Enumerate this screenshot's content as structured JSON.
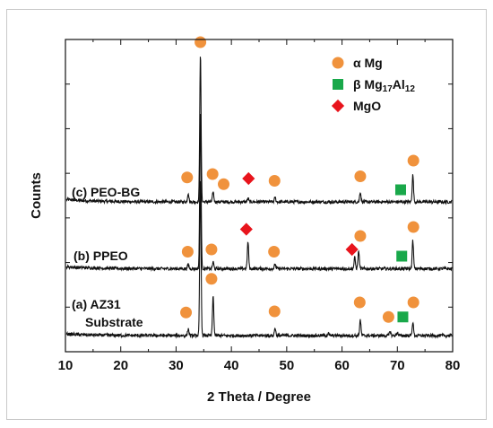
{
  "chart_data": {
    "type": "line",
    "xlabel": "2 Theta / Degree",
    "ylabel": "Counts",
    "xlim": [
      10,
      80
    ],
    "x_ticks": [
      "10",
      "20",
      "30",
      "40",
      "50",
      "60",
      "70",
      "80"
    ],
    "grid": false,
    "legend_position": "top-right",
    "legend": [
      {
        "label": "α Mg",
        "marker": "circle",
        "color": "#f0923c"
      },
      {
        "label_prefix": "β Mg",
        "sub1": "17",
        "mid": "Al",
        "sub2": "12",
        "marker": "square",
        "color": "#19a84a"
      },
      {
        "label": "MgO",
        "marker": "diamond",
        "color": "#e8141c"
      }
    ],
    "series": [
      {
        "name": "(c) PEO-BG",
        "baseline": 0.12,
        "peaks": [
          [
            32.2,
            0.4
          ],
          [
            34.4,
            6.6
          ],
          [
            36.7,
            0.45
          ],
          [
            43.0,
            0.15
          ],
          [
            47.9,
            0.2
          ],
          [
            63.3,
            0.45
          ],
          [
            72.8,
            1.2
          ]
        ],
        "markers": [
          {
            "type": "alpha",
            "x": 32.0,
            "y": 0.85
          },
          {
            "type": "alpha",
            "x": 36.6,
            "y": 1.0
          },
          {
            "type": "alpha",
            "x": 38.6,
            "y": 0.55
          },
          {
            "type": "mgo",
            "x": 43.1,
            "y": 0.8
          },
          {
            "type": "alpha",
            "x": 47.8,
            "y": 0.7
          },
          {
            "type": "alpha",
            "x": 63.3,
            "y": 0.9
          },
          {
            "type": "beta",
            "x": 70.6,
            "y": 0.3
          },
          {
            "type": "alpha",
            "x": 72.9,
            "y": 1.6
          }
        ]
      },
      {
        "name": "(b) PPEO",
        "baseline": 0.1,
        "peaks": [
          [
            32.2,
            0.2
          ],
          [
            34.4,
            7.0
          ],
          [
            36.7,
            0.3
          ],
          [
            43.0,
            1.2
          ],
          [
            47.9,
            0.2
          ],
          [
            62.3,
            0.5
          ],
          [
            63.0,
            0.8
          ],
          [
            72.8,
            1.25
          ]
        ],
        "markers": [
          {
            "type": "alpha",
            "x": 32.1,
            "y": 0.5
          },
          {
            "type": "alpha",
            "x": 36.4,
            "y": 0.6
          },
          {
            "type": "mgo",
            "x": 42.7,
            "y": 1.5
          },
          {
            "type": "alpha",
            "x": 47.7,
            "y": 0.5
          },
          {
            "type": "mgo",
            "x": 61.8,
            "y": 0.6
          },
          {
            "type": "alpha",
            "x": 63.3,
            "y": 1.2
          },
          {
            "type": "beta",
            "x": 70.8,
            "y": 0.3
          },
          {
            "type": "alpha",
            "x": 72.9,
            "y": 1.6
          }
        ]
      },
      {
        "name_line1": "(a) AZ31",
        "name_line2": "Substrate",
        "baseline": 0.08,
        "peaks": [
          [
            32.2,
            0.3
          ],
          [
            34.4,
            7.0
          ],
          [
            36.7,
            1.75
          ],
          [
            47.9,
            0.35
          ],
          [
            57.5,
            0.1
          ],
          [
            63.3,
            0.7
          ],
          [
            68.7,
            0.2
          ],
          [
            70.0,
            0.15
          ],
          [
            72.8,
            0.6
          ]
        ],
        "markers": [
          {
            "type": "alpha",
            "x": 31.8,
            "y": 0.75
          },
          {
            "type": "alpha",
            "x": 36.4,
            "y": 2.25
          },
          {
            "type": "alpha",
            "x": 47.8,
            "y": 0.8
          },
          {
            "type": "alpha",
            "x": 63.2,
            "y": 1.2
          },
          {
            "type": "alpha",
            "x": 68.4,
            "y": 0.55
          },
          {
            "type": "beta",
            "x": 71.0,
            "y": 0.55
          },
          {
            "type": "alpha",
            "x": 72.9,
            "y": 1.2
          }
        ]
      }
    ],
    "top_marker": {
      "type": "alpha",
      "x": 34.4
    }
  }
}
